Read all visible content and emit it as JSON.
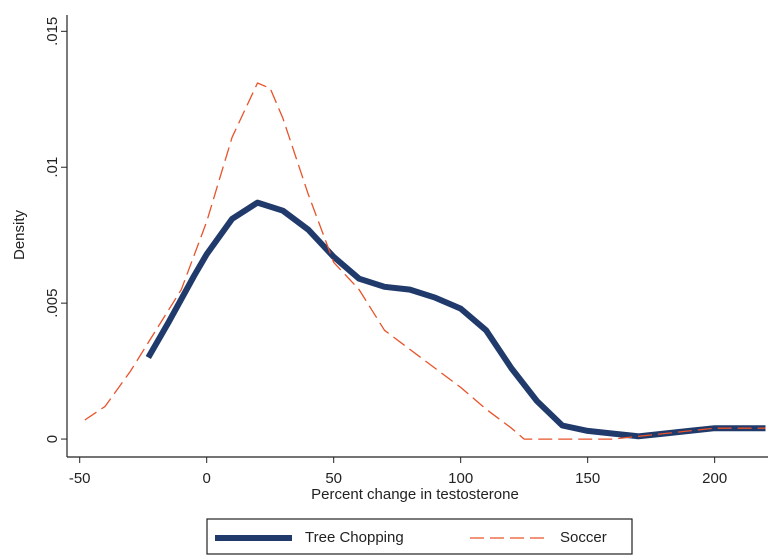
{
  "chart_data": {
    "type": "line",
    "x_label": "Percent change in testosterone",
    "y_label": "Density",
    "xlim": [
      -55,
      221
    ],
    "ylim": [
      -0.00066,
      0.0156
    ],
    "xticks": [
      -50,
      0,
      50,
      100,
      150,
      200
    ],
    "yticks": [
      0,
      {
        "value": 0.005,
        "label": ".005"
      },
      {
        "value": 0.01,
        "label": ".01"
      },
      {
        "value": 0.015,
        "label": ".015"
      }
    ],
    "grid": false,
    "legend": "bottom",
    "series": [
      {
        "name": "Tree Chopping",
        "color": "#1f3a6b",
        "style": "solid",
        "x": [
          -23,
          -15,
          -5,
          0,
          10,
          20,
          30,
          40,
          50,
          60,
          70,
          80,
          90,
          100,
          110,
          120,
          130,
          140,
          150,
          160,
          170,
          180,
          190,
          200,
          210,
          220
        ],
        "values": [
          0.003,
          0.0043,
          0.006,
          0.0068,
          0.0081,
          0.0087,
          0.0084,
          0.0077,
          0.0067,
          0.0059,
          0.0056,
          0.0055,
          0.0052,
          0.0048,
          0.004,
          0.0026,
          0.0014,
          0.0005,
          0.0003,
          0.0002,
          0.0001,
          0.0002,
          0.0003,
          0.0004,
          0.0004,
          0.0004
        ]
      },
      {
        "name": "Soccer",
        "color": "#e8532b",
        "style": "dashed",
        "x": [
          -48,
          -40,
          -30,
          -20,
          -10,
          0,
          10,
          20,
          25,
          30,
          40,
          50,
          60,
          70,
          80,
          90,
          100,
          110,
          120,
          125,
          140,
          160,
          170,
          180,
          190,
          200,
          210,
          220
        ],
        "values": [
          0.0007,
          0.0012,
          0.0025,
          0.004,
          0.0055,
          0.008,
          0.0111,
          0.0131,
          0.0129,
          0.0118,
          0.009,
          0.0065,
          0.0055,
          0.004,
          0.0033,
          0.0026,
          0.0019,
          0.0011,
          0.0004,
          0,
          0,
          0,
          0.0001,
          0.0002,
          0.0003,
          0.0004,
          0.0004,
          0.0004
        ]
      }
    ]
  }
}
